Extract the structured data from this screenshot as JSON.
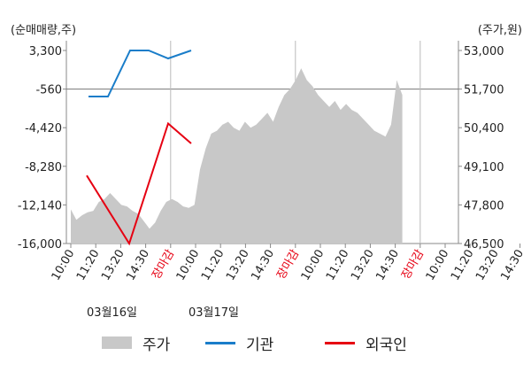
{
  "chart_data": {
    "type": "line",
    "left_axis_label": "(순매매량,주)",
    "right_axis_label": "(주가,원)",
    "left_ticks": [
      "3,300",
      "-560",
      "-4,420",
      "-8,280",
      "-12,140",
      "-16,000"
    ],
    "right_ticks": [
      "53,000",
      "51,700",
      "50,400",
      "49,100",
      "47,800",
      "46,500"
    ],
    "left_ylim": [
      -16000,
      3300
    ],
    "right_ylim": [
      46500,
      53000
    ],
    "x_tick_labels": [
      "10:00",
      "11:20",
      "13:20",
      "14:30",
      "장마감",
      "10:00",
      "11:20",
      "13:20",
      "14:30",
      "장마감",
      "10:00",
      "11:20",
      "13:20",
      "14:30",
      "장마감",
      "10:00",
      "11:20",
      "13:20",
      "14:30"
    ],
    "x_tick_red": [
      false,
      false,
      false,
      false,
      true,
      false,
      false,
      false,
      false,
      true,
      false,
      false,
      false,
      false,
      true,
      false,
      false,
      false,
      false
    ],
    "date_labels": [
      "03월16일",
      "03월17일"
    ],
    "series": [
      {
        "name": "주가",
        "type": "area",
        "color": "#c8c8c8",
        "values": [
          47650,
          47300,
          47450,
          47550,
          47600,
          47900,
          48000,
          48200,
          48000,
          47800,
          47750,
          47600,
          47500,
          47250,
          47000,
          47200,
          47600,
          47900,
          48000,
          47900,
          47750,
          47700,
          47800,
          49000,
          49700,
          50200,
          50300,
          50500,
          50600,
          50400,
          50300,
          50600,
          50400,
          50500,
          50700,
          50900,
          50600,
          51100,
          51500,
          51700,
          52000,
          52400,
          52000,
          51800,
          51500,
          51300,
          51100,
          51300,
          51000,
          51200,
          51000,
          50900,
          50700,
          50500,
          50300,
          50200,
          50100,
          50500,
          52000,
          51500
        ]
      },
      {
        "name": "기관",
        "type": "line",
        "color": "#1a7dc9",
        "values": [
          -1300,
          -1300,
          3300,
          3300,
          2500,
          3300
        ]
      },
      {
        "name": "외국인",
        "type": "line",
        "color": "#e60012",
        "values": [
          -9200,
          -16000,
          -4000,
          -6000
        ]
      }
    ],
    "grid": true
  },
  "legend": {
    "items": [
      {
        "label": "주가"
      },
      {
        "label": "기관"
      },
      {
        "label": "외국인"
      }
    ]
  }
}
